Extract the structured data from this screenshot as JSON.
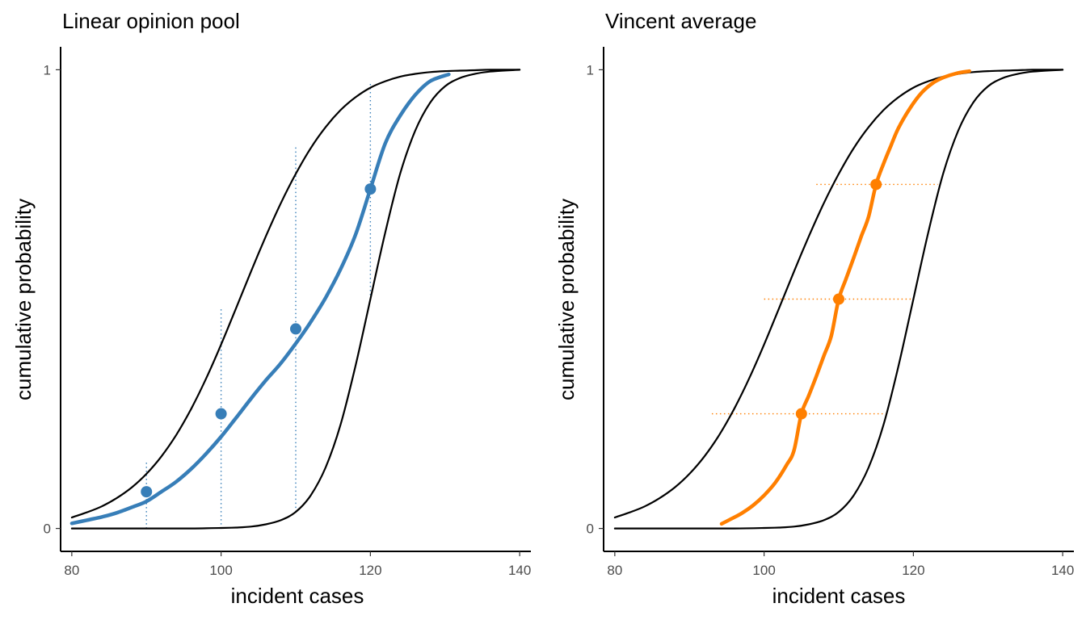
{
  "chart_data": [
    {
      "type": "line",
      "title": "Linear opinion pool",
      "xlabel": "incident cases",
      "ylabel": "cumulative probability",
      "xlim": [
        78.5,
        141.5
      ],
      "ylim": [
        -0.05,
        1.05
      ],
      "x_ticks": [
        "80",
        "100",
        "120",
        "140"
      ],
      "y_ticks": [
        "0",
        "1"
      ],
      "grid": false,
      "legend": "none",
      "accent_color": "#377EB8",
      "series": [
        {
          "kind": "component",
          "color": "#000000",
          "x": [
            80,
            82,
            84,
            86,
            88,
            90,
            92,
            94,
            96,
            98,
            100,
            102,
            104,
            106,
            108,
            110,
            112,
            114,
            116,
            118,
            120,
            122,
            124,
            126,
            128,
            130,
            132,
            134,
            136,
            140
          ],
          "y": [
            0.024,
            0.035,
            0.048,
            0.066,
            0.089,
            0.119,
            0.157,
            0.204,
            0.261,
            0.327,
            0.401,
            0.48,
            0.56,
            0.637,
            0.709,
            0.773,
            0.829,
            0.875,
            0.912,
            0.94,
            0.961,
            0.975,
            0.985,
            0.991,
            0.995,
            0.997,
            0.998,
            0.999,
            1.0,
            1.0
          ]
        },
        {
          "kind": "component",
          "color": "#000000",
          "x": [
            80,
            90,
            96,
            100,
            102,
            104,
            106,
            108,
            110,
            112,
            114,
            116,
            118,
            120,
            122,
            124,
            126,
            128,
            130,
            132,
            134,
            136,
            140
          ],
          "y": [
            0.0,
            0.0,
            0.0,
            0.001,
            0.002,
            0.004,
            0.009,
            0.018,
            0.036,
            0.072,
            0.133,
            0.226,
            0.354,
            0.5,
            0.646,
            0.774,
            0.867,
            0.928,
            0.964,
            0.982,
            0.991,
            0.996,
            1.0
          ]
        },
        {
          "kind": "pooled",
          "color": "#377EB8",
          "x": [
            80,
            82,
            84,
            86,
            88,
            90,
            92,
            94,
            96,
            98,
            100,
            102,
            104,
            106,
            108,
            110,
            112,
            114,
            116,
            118,
            120,
            122,
            124,
            126,
            128,
            130.5
          ],
          "y": [
            0.011,
            0.018,
            0.025,
            0.034,
            0.046,
            0.059,
            0.08,
            0.102,
            0.13,
            0.163,
            0.2,
            0.241,
            0.283,
            0.323,
            0.36,
            0.403,
            0.45,
            0.503,
            0.565,
            0.64,
            0.74,
            0.84,
            0.9,
            0.945,
            0.975,
            0.99
          ]
        }
      ],
      "markers": [
        {
          "x": 90,
          "y": 0.08
        },
        {
          "x": 100,
          "y": 0.25
        },
        {
          "x": 110,
          "y": 0.435
        },
        {
          "x": 120,
          "y": 0.74
        }
      ],
      "guide_segments": [
        {
          "x": 90,
          "y0": 0.0,
          "y1": 0.148
        },
        {
          "x": 100,
          "y0": 0.0,
          "y1": 0.48
        },
        {
          "x": 110,
          "y0": 0.036,
          "y1": 0.835
        },
        {
          "x": 120,
          "y0": 0.5,
          "y1": 0.97
        }
      ]
    },
    {
      "type": "line",
      "title": "Vincent average",
      "xlabel": "incident cases",
      "ylabel": "cumulative probability",
      "xlim": [
        78.5,
        141.5
      ],
      "ylim": [
        -0.05,
        1.05
      ],
      "x_ticks": [
        "80",
        "100",
        "120",
        "140"
      ],
      "y_ticks": [
        "0",
        "1"
      ],
      "grid": false,
      "legend": "none",
      "accent_color": "#FF7F00",
      "series": [
        {
          "kind": "component",
          "color": "#000000",
          "x": [
            80,
            82,
            84,
            86,
            88,
            90,
            92,
            94,
            96,
            98,
            100,
            102,
            104,
            106,
            108,
            110,
            112,
            114,
            116,
            118,
            120,
            122,
            124,
            126,
            128,
            130,
            132,
            134,
            136,
            140
          ],
          "y": [
            0.024,
            0.035,
            0.048,
            0.066,
            0.089,
            0.119,
            0.157,
            0.204,
            0.261,
            0.327,
            0.401,
            0.48,
            0.56,
            0.637,
            0.709,
            0.773,
            0.829,
            0.875,
            0.912,
            0.94,
            0.961,
            0.975,
            0.985,
            0.991,
            0.995,
            0.997,
            0.998,
            0.999,
            1.0,
            1.0
          ]
        },
        {
          "kind": "component",
          "color": "#000000",
          "x": [
            80,
            90,
            96,
            100,
            102,
            104,
            106,
            108,
            110,
            112,
            114,
            116,
            118,
            120,
            122,
            124,
            126,
            128,
            130,
            132,
            134,
            136,
            140
          ],
          "y": [
            0.0,
            0.0,
            0.0,
            0.001,
            0.002,
            0.004,
            0.009,
            0.018,
            0.036,
            0.072,
            0.133,
            0.226,
            0.354,
            0.5,
            0.646,
            0.774,
            0.867,
            0.928,
            0.964,
            0.982,
            0.991,
            0.996,
            1.0
          ]
        },
        {
          "kind": "vincent",
          "color": "#FF7F00",
          "x": [
            94.3,
            95.5,
            97,
            98.5,
            100,
            101.5,
            103,
            104,
            105,
            106,
            107,
            108,
            109,
            110,
            111,
            112,
            113,
            114,
            115,
            116,
            117,
            118,
            119.5,
            121,
            122.5,
            124,
            125.7,
            127.5
          ],
          "y": [
            0.01,
            0.02,
            0.033,
            0.05,
            0.072,
            0.1,
            0.138,
            0.17,
            0.25,
            0.29,
            0.332,
            0.376,
            0.42,
            0.5,
            0.545,
            0.59,
            0.636,
            0.68,
            0.75,
            0.795,
            0.835,
            0.873,
            0.915,
            0.948,
            0.97,
            0.983,
            0.992,
            0.997
          ]
        }
      ],
      "markers": [
        {
          "x": 105,
          "y": 0.25
        },
        {
          "x": 110,
          "y": 0.5
        },
        {
          "x": 115,
          "y": 0.75
        }
      ],
      "guide_segments_h": [
        {
          "y": 0.25,
          "x0": 93,
          "x1": 116.7
        },
        {
          "y": 0.5,
          "x0": 100,
          "x1": 120
        },
        {
          "y": 0.75,
          "x0": 107,
          "x1": 123.3
        }
      ]
    }
  ]
}
